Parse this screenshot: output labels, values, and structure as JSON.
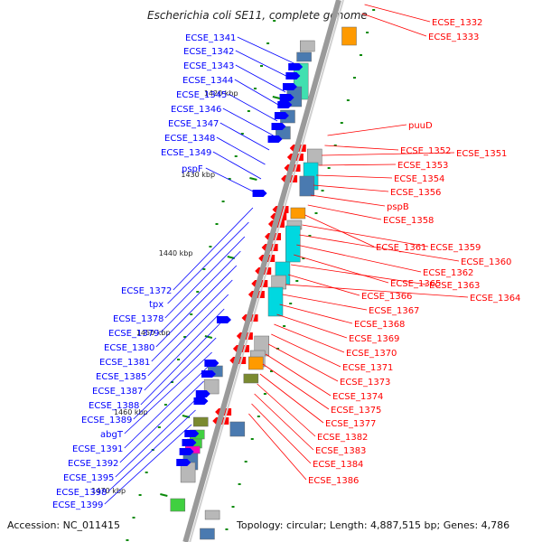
{
  "title": "Escherichia coli SE11, complete genome",
  "accession": "Accession: NC_011415",
  "topology": "Topology: circular; Length: 4,887,515 bp; Genes: 4,786",
  "tick_labels": [
    "1420 kbp",
    "1430 kbp",
    "1440 kbp",
    "1450 kbp",
    "1460 kbp",
    "1470 kbp"
  ],
  "left_genes": [
    "ECSE_1341",
    "ECSE_1342",
    "ECSE_1343",
    "ECSE_1344",
    "ECSE_1345",
    "ECSE_1346",
    "ECSE_1347",
    "ECSE_1348",
    "ECSE_1349",
    "pspF",
    "ECSE_1372",
    "tpx",
    "ECSE_1378",
    "ECSE_1379",
    "ECSE_1380",
    "ECSE_1381",
    "ECSE_1385",
    "ECSE_1387",
    "ECSE_1388",
    "ECSE_1389",
    "abgT",
    "ECSE_1391",
    "ECSE_1392",
    "ECSE_1395",
    "ECSE_1398",
    "ECSE_1399"
  ],
  "right_genes": [
    "ECSE_1332",
    "ECSE_1333",
    "puuD",
    "ECSE_1352",
    "ECSE_1351",
    "ECSE_1353",
    "ECSE_1354",
    "ECSE_1356",
    "pspB",
    "ECSE_1358",
    "ECSE_1361",
    "ECSE_1359",
    "ECSE_1360",
    "ECSE_1362",
    "ECSE_1365",
    "ECSE_1363",
    "ECSE_1366",
    "ECSE_1364",
    "ECSE_1367",
    "ECSE_1368",
    "ECSE_1369",
    "ECSE_1370",
    "ECSE_1371",
    "ECSE_1373",
    "ECSE_1374",
    "ECSE_1375",
    "ECSE_1377",
    "ECSE_1382",
    "ECSE_1383",
    "ECSE_1384",
    "ECSE_1386"
  ],
  "colors": {
    "backbone": "#808080",
    "left_gene": "#0000ff",
    "right_gene": "#ff0000",
    "tick": "#0a8a0a",
    "cog_cyan": "#00d8e0",
    "cog_teal": "#40e0b0",
    "cog_gray": "#b8b8b8",
    "cog_orange": "#ff9a00",
    "cog_olive": "#7a8a30",
    "cog_magenta": "#ff00c0",
    "cog_green": "#40d040",
    "cog_steel": "#4a7ab0"
  }
}
